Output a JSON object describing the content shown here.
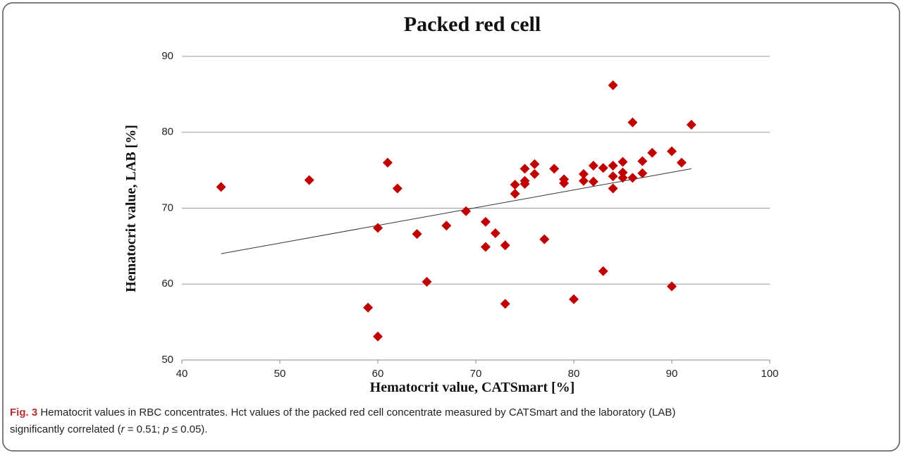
{
  "chart_data": {
    "type": "scatter",
    "title": "Packed red cell",
    "x_label": "Hematocrit value, CATSmart [%]",
    "y_label": "Hematocrit value, LAB [%]",
    "xlim": [
      40,
      100
    ],
    "xticks": [
      40,
      50,
      60,
      70,
      80,
      90,
      100
    ],
    "ylim": [
      50,
      90
    ],
    "yticks": [
      50,
      60,
      70,
      80,
      90
    ],
    "grid": true,
    "color": "#c00000",
    "x": [
      44,
      53,
      59,
      60,
      60,
      61,
      62,
      64,
      65,
      67,
      69,
      71,
      71,
      72,
      73,
      73,
      74,
      74,
      75,
      75,
      75,
      76,
      76,
      77,
      78,
      79,
      79,
      80,
      81,
      81,
      82,
      82,
      83,
      83,
      84,
      84,
      84,
      84,
      85,
      85,
      85,
      86,
      86,
      87,
      87,
      88,
      90,
      90,
      91,
      92
    ],
    "values": [
      72.8,
      73.7,
      56.9,
      53.1,
      67.4,
      76.0,
      72.6,
      66.6,
      60.3,
      67.7,
      69.6,
      68.2,
      64.9,
      66.7,
      65.1,
      57.4,
      71.9,
      73.1,
      73.2,
      73.6,
      75.2,
      74.5,
      75.8,
      65.9,
      75.2,
      73.3,
      73.8,
      58.0,
      73.6,
      74.5,
      73.5,
      75.6,
      75.3,
      61.7,
      86.2,
      75.6,
      74.2,
      72.6,
      74.0,
      74.7,
      76.1,
      81.3,
      74.0,
      74.6,
      76.2,
      77.3,
      77.5,
      59.7,
      76.0,
      81.0
    ],
    "trendline": {
      "x": [
        44,
        92
      ],
      "values": [
        64.0,
        75.2
      ],
      "color": "#333333"
    }
  },
  "caption": {
    "label": "Fig. 3",
    "line1": " Hematocrit values in RBC concentrates. Hct values of the packed red cell concentrate measured by CATSmart and the laboratory (LAB)",
    "line2_parts": [
      "significantly correlated (",
      "r",
      " = 0.51; ",
      "p",
      " ≤ 0.05)."
    ]
  }
}
